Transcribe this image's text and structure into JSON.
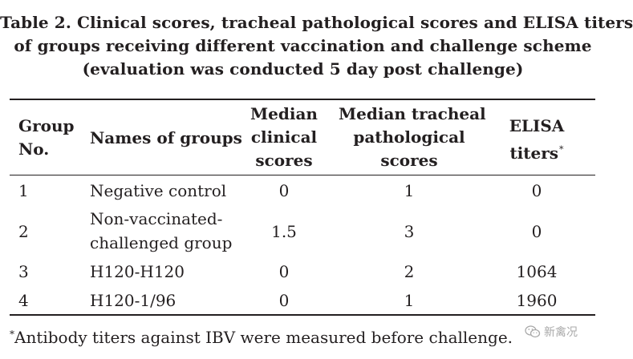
{
  "caption": {
    "line1": "Table 2. Clinical scores, tracheal pathological scores and ELISA titers",
    "line2": "of groups receiving different vaccination and challenge scheme",
    "line3": "(evaluation was conducted 5 day post challenge)"
  },
  "table": {
    "headers": {
      "group_no": [
        "Group",
        "No."
      ],
      "names": "Names of groups",
      "clinical": [
        "Median",
        "clinical",
        "scores"
      ],
      "tracheal": [
        "Median tracheal",
        "pathological",
        "scores"
      ],
      "elisa": [
        "ELISA",
        "titers"
      ],
      "elisa_marker": "*"
    },
    "rows": [
      {
        "no": "1",
        "name": [
          "Negative control"
        ],
        "clinical": "0",
        "tracheal": "1",
        "elisa": "0"
      },
      {
        "no": "2",
        "name": [
          "Non-vaccinated-",
          "challenged group"
        ],
        "clinical": "1.5",
        "tracheal": "3",
        "elisa": "0"
      },
      {
        "no": "3",
        "name": [
          "H120-H120"
        ],
        "clinical": "0",
        "tracheal": "2",
        "elisa": "1064"
      },
      {
        "no": "4",
        "name": [
          "H120-1/96"
        ],
        "clinical": "0",
        "tracheal": "1",
        "elisa": "1960"
      }
    ]
  },
  "footnote": {
    "marker": "*",
    "text": "Antibody titers against IBV were measured before challenge."
  },
  "watermark": {
    "text": "新禽况",
    "icon": "wechat-icon"
  }
}
